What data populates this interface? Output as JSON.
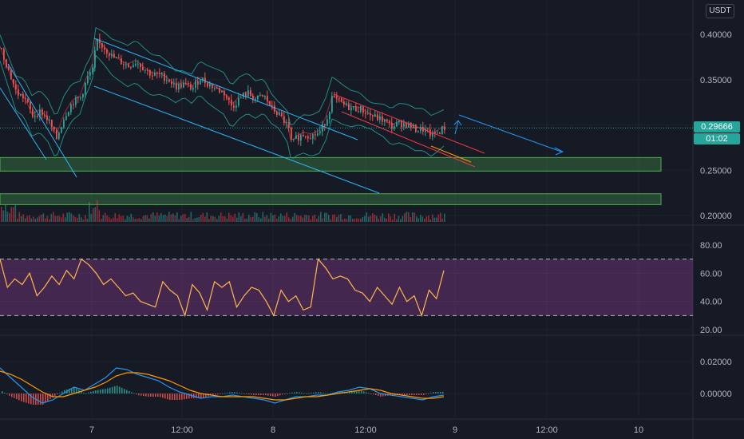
{
  "currency": "USDT",
  "price_badge": {
    "price": "0.29666",
    "countdown": "01:02"
  },
  "chart_data": [
    {
      "type": "candlestick",
      "panel": "price",
      "x_axis_labels": [
        "7",
        "12:00",
        "8",
        "12:00",
        "9",
        "12:00",
        "10"
      ],
      "y_ticks": [
        "0.40000",
        "0.35000",
        "0.25000",
        "0.20000"
      ],
      "ylim": [
        0.19,
        0.42
      ],
      "last_price": 0.29666,
      "close_path": [
        [
          0,
          0.385
        ],
        [
          10,
          0.36
        ],
        [
          20,
          0.335
        ],
        [
          30,
          0.33
        ],
        [
          40,
          0.31
        ],
        [
          50,
          0.315
        ],
        [
          60,
          0.305
        ],
        [
          70,
          0.285
        ],
        [
          80,
          0.31
        ],
        [
          90,
          0.325
        ],
        [
          100,
          0.33
        ],
        [
          110,
          0.355
        ],
        [
          115,
          0.36
        ],
        [
          120,
          0.392
        ],
        [
          130,
          0.385
        ],
        [
          140,
          0.375
        ],
        [
          150,
          0.37
        ],
        [
          160,
          0.365
        ],
        [
          170,
          0.37
        ],
        [
          180,
          0.362
        ],
        [
          190,
          0.355
        ],
        [
          200,
          0.355
        ],
        [
          210,
          0.35
        ],
        [
          220,
          0.342
        ],
        [
          230,
          0.345
        ],
        [
          240,
          0.34
        ],
        [
          250,
          0.352
        ],
        [
          260,
          0.345
        ],
        [
          270,
          0.34
        ],
        [
          280,
          0.335
        ],
        [
          290,
          0.32
        ],
        [
          300,
          0.33
        ],
        [
          310,
          0.335
        ],
        [
          320,
          0.328
        ],
        [
          330,
          0.332
        ],
        [
          340,
          0.318
        ],
        [
          350,
          0.31
        ],
        [
          360,
          0.298
        ],
        [
          365,
          0.278
        ],
        [
          370,
          0.285
        ],
        [
          380,
          0.29
        ],
        [
          390,
          0.288
        ],
        [
          400,
          0.292
        ],
        [
          410,
          0.31
        ],
        [
          415,
          0.33
        ],
        [
          420,
          0.328
        ],
        [
          430,
          0.322
        ],
        [
          440,
          0.318
        ],
        [
          450,
          0.318
        ],
        [
          460,
          0.312
        ],
        [
          470,
          0.308
        ],
        [
          480,
          0.305
        ],
        [
          490,
          0.298
        ],
        [
          500,
          0.302
        ],
        [
          510,
          0.3
        ],
        [
          520,
          0.295
        ],
        [
          530,
          0.295
        ],
        [
          540,
          0.288
        ],
        [
          550,
          0.293
        ],
        [
          555,
          0.2967
        ]
      ],
      "bollinger_half_width": 0.018,
      "horizontal_zones": [
        {
          "from": 0.249,
          "to": 0.264
        },
        {
          "from": 0.212,
          "to": 0.224
        }
      ],
      "annotation_colors": {
        "channel": "#29b6f6",
        "wedge": "#f23645",
        "zone": "#4caf50",
        "projection": "#2196f3"
      }
    },
    {
      "type": "line",
      "panel": "rsi",
      "y_ticks": [
        "80.00",
        "60.00",
        "40.00",
        "20.00"
      ],
      "ylim": [
        16,
        88
      ],
      "band": [
        30,
        70
      ],
      "values": [
        70,
        50,
        56,
        52,
        60,
        44,
        50,
        58,
        52,
        62,
        56,
        70,
        66,
        60,
        52,
        56,
        50,
        44,
        46,
        40,
        38,
        36,
        54,
        48,
        44,
        30,
        52,
        46,
        34,
        54,
        50,
        54,
        36,
        44,
        50,
        48,
        40,
        30,
        48,
        40,
        44,
        34,
        36,
        70,
        64,
        56,
        58,
        56,
        48,
        46,
        40,
        50,
        44,
        38,
        50,
        40,
        44,
        30,
        48,
        42,
        62
      ]
    },
    {
      "type": "line",
      "panel": "macd",
      "y_ticks": [
        "0.02000",
        "0.00000"
      ],
      "ylim": [
        -0.011,
        0.027
      ],
      "macd": [
        0.016,
        0.01,
        0.004,
        -0.002,
        -0.006,
        -0.004,
        0.0,
        0.004,
        0.002,
        0.006,
        0.01,
        0.016,
        0.015,
        0.012,
        0.01,
        0.008,
        0.004,
        0.001,
        -0.001,
        -0.003,
        -0.002,
        -0.002,
        -0.001,
        -0.002,
        -0.003,
        -0.004,
        -0.006,
        -0.004,
        -0.002,
        -0.002,
        -0.001,
        -0.001,
        0.001,
        0.002,
        0.004,
        0.003,
        0.0,
        -0.001,
        -0.002,
        -0.003,
        -0.004,
        -0.002,
        -0.001
      ],
      "signal": [
        0.014,
        0.012,
        0.009,
        0.005,
        0.001,
        -0.002,
        -0.002,
        0.0,
        0.002,
        0.004,
        0.007,
        0.011,
        0.013,
        0.013,
        0.012,
        0.01,
        0.008,
        0.005,
        0.002,
        0.0,
        -0.001,
        -0.002,
        -0.002,
        -0.002,
        -0.002,
        -0.003,
        -0.004,
        -0.004,
        -0.003,
        -0.002,
        -0.002,
        -0.001,
        0.0,
        0.001,
        0.002,
        0.003,
        0.002,
        0.0,
        -0.001,
        -0.002,
        -0.003,
        -0.003,
        -0.002
      ]
    }
  ]
}
